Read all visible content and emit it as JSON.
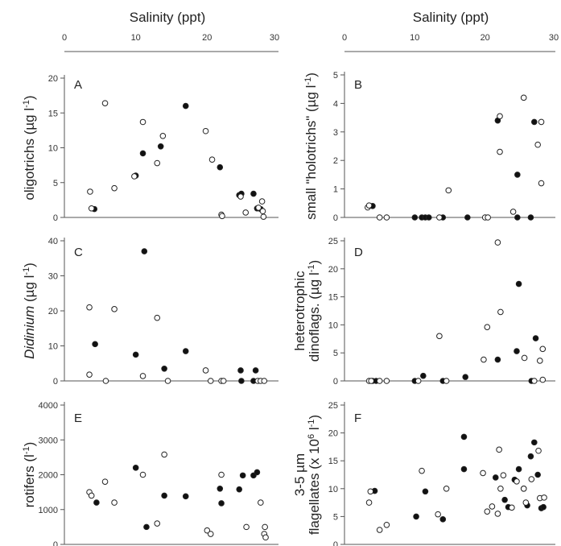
{
  "top_axis": {
    "title": "Salinity (ppt)",
    "ticks": [
      "0",
      "10",
      "20",
      "30"
    ]
  },
  "chart_data": [
    {
      "id": "A",
      "type": "scatter",
      "panel_label": "A",
      "ylabel_parts": [
        {
          "t": "oligotrichs ("
        },
        {
          "t": "µg l",
          "i": false
        },
        {
          "t": "-1",
          "sup": true
        },
        {
          "t": ")"
        }
      ],
      "xlim": [
        0,
        30
      ],
      "ylim": [
        0,
        20
      ],
      "yticks": [
        "0",
        "5",
        "10",
        "15",
        "20"
      ],
      "series": [
        {
          "filled": true,
          "points": [
            [
              4.2,
              1.2
            ],
            [
              10,
              6
            ],
            [
              11,
              9.2
            ],
            [
              13.5,
              10.2
            ],
            [
              17,
              16
            ],
            [
              21.8,
              7.2
            ],
            [
              24.5,
              3.2
            ],
            [
              24.8,
              3.4
            ],
            [
              26.5,
              3.4
            ],
            [
              27,
              1.3
            ],
            [
              27.5,
              1.2
            ]
          ]
        },
        {
          "filled": false,
          "points": [
            [
              3.6,
              3.7
            ],
            [
              3.8,
              1.3
            ],
            [
              5.7,
              16.4
            ],
            [
              7,
              4.2
            ],
            [
              9.8,
              5.9
            ],
            [
              11,
              13.7
            ],
            [
              13,
              7.8
            ],
            [
              13.8,
              11.7
            ],
            [
              19.8,
              12.4
            ],
            [
              20.7,
              8.3
            ],
            [
              22,
              0.4
            ],
            [
              22.1,
              0.2
            ],
            [
              24.7,
              3.0
            ],
            [
              25.4,
              0.7
            ],
            [
              27.2,
              1.4
            ],
            [
              27.7,
              2.3
            ],
            [
              27.8,
              0.9
            ],
            [
              27.9,
              0.1
            ]
          ]
        }
      ]
    },
    {
      "id": "B",
      "type": "scatter",
      "panel_label": "B",
      "ylabel_parts": [
        {
          "t": "small \"holotrichs\" ("
        },
        {
          "t": "µg l"
        },
        {
          "t": "-1",
          "sup": true
        },
        {
          "t": ")"
        }
      ],
      "xlim": [
        0,
        30
      ],
      "ylim": [
        0,
        5
      ],
      "yticks": [
        "0",
        "1",
        "2",
        "3",
        "4",
        "5"
      ],
      "series": [
        {
          "filled": true,
          "points": [
            [
              4,
              0.4
            ],
            [
              10,
              0
            ],
            [
              11,
              0
            ],
            [
              11.5,
              0
            ],
            [
              12,
              0
            ],
            [
              14,
              0
            ],
            [
              17.5,
              0
            ],
            [
              21.8,
              3.4
            ],
            [
              24.6,
              1.5
            ],
            [
              24.6,
              0
            ],
            [
              26.5,
              0
            ],
            [
              27,
              3.35
            ]
          ]
        },
        {
          "filled": false,
          "points": [
            [
              3.3,
              0.35
            ],
            [
              3.5,
              0.42
            ],
            [
              5,
              0
            ],
            [
              6,
              0
            ],
            [
              13.5,
              0
            ],
            [
              14.8,
              0.95
            ],
            [
              20,
              0
            ],
            [
              20.4,
              0
            ],
            [
              22.1,
              3.55
            ],
            [
              22.1,
              2.3
            ],
            [
              24,
              0.2
            ],
            [
              25.5,
              4.2
            ],
            [
              27.5,
              2.55
            ],
            [
              28,
              3.35
            ],
            [
              28,
              1.2
            ]
          ]
        }
      ]
    },
    {
      "id": "C",
      "type": "scatter",
      "panel_label": "C",
      "ylabel_parts": [
        {
          "t": "Didinium",
          "i": true
        },
        {
          "t": " ("
        },
        {
          "t": "µg l"
        },
        {
          "t": "-1",
          "sup": true
        },
        {
          "t": ")"
        }
      ],
      "xlim": [
        0,
        30
      ],
      "ylim": [
        0,
        40
      ],
      "yticks": [
        "0",
        "10",
        "20",
        "30",
        "40"
      ],
      "series": [
        {
          "filled": true,
          "points": [
            [
              4.3,
              10.5
            ],
            [
              10,
              7.5
            ],
            [
              11.2,
              37
            ],
            [
              14,
              3.5
            ],
            [
              17,
              8.5
            ],
            [
              24.7,
              3
            ],
            [
              26.8,
              3
            ],
            [
              24.8,
              0
            ],
            [
              26.5,
              0
            ]
          ]
        },
        {
          "filled": false,
          "points": [
            [
              3.5,
              21
            ],
            [
              3.5,
              1.8
            ],
            [
              5.8,
              0
            ],
            [
              7,
              20.5
            ],
            [
              11,
              1.4
            ],
            [
              13,
              18
            ],
            [
              14.5,
              0
            ],
            [
              19.8,
              3
            ],
            [
              20.5,
              0
            ],
            [
              22,
              0
            ],
            [
              22.3,
              0
            ],
            [
              27.1,
              0
            ],
            [
              27.5,
              0
            ],
            [
              28,
              0
            ]
          ]
        }
      ]
    },
    {
      "id": "D",
      "type": "scatter",
      "panel_label": "D",
      "ylabel_parts": [
        {
          "t": "heterotrophic"
        },
        {
          "t": "dinoflags. (",
          "line2": true
        },
        {
          "t": "µg l",
          "line2": true
        },
        {
          "t": "-1",
          "sup": true,
          "line2": true
        },
        {
          "t": ")",
          "line2": true
        }
      ],
      "xlim": [
        0,
        30
      ],
      "ylim": [
        0,
        25
      ],
      "yticks": [
        "0",
        "5",
        "10",
        "15",
        "20",
        "25"
      ],
      "series": [
        {
          "filled": true,
          "points": [
            [
              4,
              0
            ],
            [
              4.5,
              0
            ],
            [
              10,
              0
            ],
            [
              11.2,
              0.9
            ],
            [
              14,
              0
            ],
            [
              17.2,
              0.7
            ],
            [
              21.8,
              3.8
            ],
            [
              24.5,
              5.3
            ],
            [
              24.8,
              17.3
            ],
            [
              26.6,
              0
            ],
            [
              27.2,
              7.6
            ]
          ]
        },
        {
          "filled": false,
          "points": [
            [
              3.5,
              0
            ],
            [
              3.8,
              0
            ],
            [
              5,
              0
            ],
            [
              6,
              0
            ],
            [
              10.5,
              0
            ],
            [
              13.5,
              8
            ],
            [
              14.5,
              0
            ],
            [
              19.8,
              3.8
            ],
            [
              20.3,
              9.6
            ],
            [
              21.8,
              24.7
            ],
            [
              22.2,
              12.3
            ],
            [
              25.6,
              4.1
            ],
            [
              27,
              0
            ],
            [
              27.8,
              3.6
            ],
            [
              28.2,
              5.7
            ],
            [
              28.2,
              0.2
            ]
          ]
        }
      ]
    },
    {
      "id": "E",
      "type": "scatter",
      "panel_label": "E",
      "ylabel_parts": [
        {
          "t": "rotifers (l"
        },
        {
          "t": "-1",
          "sup": true
        },
        {
          "t": ")"
        }
      ],
      "xlim": [
        0,
        30
      ],
      "ylim": [
        0,
        4000
      ],
      "yticks": [
        "0",
        "1000",
        "2000",
        "3000",
        "4000"
      ],
      "series": [
        {
          "filled": true,
          "points": [
            [
              4.5,
              1200
            ],
            [
              10,
              2200
            ],
            [
              11.5,
              500
            ],
            [
              14,
              1400
            ],
            [
              17,
              1380
            ],
            [
              21.8,
              1600
            ],
            [
              22,
              1180
            ],
            [
              24.5,
              1580
            ],
            [
              25,
              1980
            ],
            [
              26.5,
              1980
            ],
            [
              27,
              2070
            ]
          ]
        },
        {
          "filled": false,
          "points": [
            [
              3.5,
              1500
            ],
            [
              3.8,
              1400
            ],
            [
              5.7,
              1800
            ],
            [
              7,
              1200
            ],
            [
              11,
              2000
            ],
            [
              13,
              600
            ],
            [
              14,
              2580
            ],
            [
              20,
              400
            ],
            [
              20.5,
              300
            ],
            [
              22,
              2000
            ],
            [
              25.5,
              500
            ],
            [
              27.5,
              1200
            ],
            [
              28,
              300
            ],
            [
              28.1,
              500
            ],
            [
              28.2,
              200
            ]
          ]
        }
      ]
    },
    {
      "id": "F",
      "type": "scatter",
      "panel_label": "F",
      "ylabel_parts": [
        {
          "t": "3-5 µm"
        },
        {
          "t": "flagellates (x 10",
          "line2": true
        },
        {
          "t": "6",
          "sup": true,
          "line2": true
        },
        {
          "t": " l",
          "line2": true
        },
        {
          "t": "-1",
          "sup": true,
          "line2": true
        },
        {
          "t": ")",
          "line2": true
        }
      ],
      "xlim": [
        0,
        30
      ],
      "ylim": [
        0,
        25
      ],
      "yticks": [
        "0",
        "5",
        "10",
        "15",
        "20",
        "25"
      ],
      "series": [
        {
          "filled": true,
          "points": [
            [
              4.3,
              9.6
            ],
            [
              10.2,
              5
            ],
            [
              11.5,
              9.5
            ],
            [
              14,
              4.5
            ],
            [
              17,
              19.3
            ],
            [
              17,
              13.5
            ],
            [
              21.5,
              12
            ],
            [
              22.8,
              8
            ],
            [
              23.3,
              6.7
            ],
            [
              24.2,
              11.6
            ],
            [
              24.8,
              13.5
            ],
            [
              25.5,
              10
            ],
            [
              26,
              7
            ],
            [
              26.5,
              15.8
            ],
            [
              27,
              18.3
            ],
            [
              27.5,
              12.5
            ],
            [
              28,
              6.5
            ],
            [
              28.3,
              6.7
            ]
          ]
        },
        {
          "filled": false,
          "points": [
            [
              3.5,
              7.5
            ],
            [
              3.7,
              9.5
            ],
            [
              5,
              2.6
            ],
            [
              6,
              3.5
            ],
            [
              11,
              13.2
            ],
            [
              13.3,
              5.4
            ],
            [
              14.5,
              10
            ],
            [
              19.7,
              12.8
            ],
            [
              20.3,
              5.9
            ],
            [
              21,
              6.8
            ],
            [
              21.8,
              5.5
            ],
            [
              22.2,
              10
            ],
            [
              22,
              17
            ],
            [
              22.6,
              12.4
            ],
            [
              23.8,
              6.6
            ],
            [
              24.5,
              11.3
            ],
            [
              25.5,
              10
            ],
            [
              25.8,
              7.5
            ],
            [
              26.6,
              11.7
            ],
            [
              27.6,
              16.8
            ],
            [
              27.8,
              8.3
            ],
            [
              28.4,
              8.4
            ]
          ]
        }
      ]
    }
  ]
}
